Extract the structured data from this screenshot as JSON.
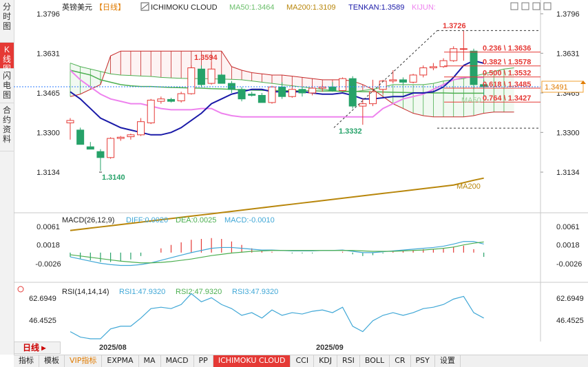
{
  "left_nav": [
    {
      "label": "分时图",
      "active": false
    },
    {
      "label": "K线图",
      "active": true
    },
    {
      "label": "闪电图",
      "active": false
    },
    {
      "label": "合约资料",
      "active": false
    }
  ],
  "main_legend": {
    "symbol": "英镑美元",
    "period": "【日线】",
    "indicator": "ICHIMOKU CLOUD",
    "ma50": "MA50:1.3464",
    "ma200": "MA200:1.3109",
    "tenkan": "TENKAN:1.3589",
    "kijun": "KIJUN:"
  },
  "macd_legend": {
    "title": "MACD(26,12,9)",
    "diff": "DIFF:0.0020",
    "dea": "DEA:0.0025",
    "macd": "MACD:-0.0010"
  },
  "rsi_legend": {
    "title": "RSI(14,14,14)",
    "rsi1": "RSI1:47.9320",
    "rsi2": "RSI2:47.9320",
    "rsi3": "RSI3:47.9320"
  },
  "price_axis": [
    "1.3796",
    "1.3631",
    "1.3465",
    "1.3300",
    "1.3134"
  ],
  "current_price": "1.3491",
  "macd_axis": [
    "0.0061",
    "0.0018",
    "-0.0026"
  ],
  "rsi_axis": [
    "62.6949",
    "46.4525"
  ],
  "annotations": {
    "high": "1.3726",
    "low_left": "1.3140",
    "low_mid": "1.3332",
    "peak_mid": "1.3594",
    "ma50_label": "MA50",
    "ma200_label": "MA200"
  },
  "fib_levels": [
    {
      "label": "0.236 \\ 1.3636",
      "value": 1.3636
    },
    {
      "label": "0.382 \\ 1.3578",
      "value": 1.3578
    },
    {
      "label": "0.500 \\ 1.3532",
      "value": 1.3532
    },
    {
      "label": "0.618 \\ 1.3485",
      "value": 1.3485
    },
    {
      "label": "0.764 \\ 1.3427",
      "value": 1.3427
    }
  ],
  "period_button": "日线",
  "x_labels": [
    "2025/08",
    "2025/09"
  ],
  "toolbar": [
    {
      "label": "指标",
      "style": "first"
    },
    {
      "label": "模板",
      "style": ""
    },
    {
      "label": "VIP指标",
      "style": "orange"
    },
    {
      "label": "EXPMA",
      "style": ""
    },
    {
      "label": "MA",
      "style": ""
    },
    {
      "label": "MACD",
      "style": ""
    },
    {
      "label": "PP",
      "style": ""
    },
    {
      "label": "ICHIMOKU CLOUD",
      "style": "active"
    },
    {
      "label": "CCI",
      "style": ""
    },
    {
      "label": "KDJ",
      "style": ""
    },
    {
      "label": "RSI",
      "style": ""
    },
    {
      "label": "BOLL",
      "style": ""
    },
    {
      "label": "CR",
      "style": ""
    },
    {
      "label": "PSY",
      "style": ""
    },
    {
      "label": "设置",
      "style": ""
    }
  ],
  "colors": {
    "up": "#e53935",
    "down": "#26a269",
    "ma50": "#4caf50",
    "ma200": "#b8860b",
    "tenkan": "#1a1aa8",
    "kijun": "#ee82ee",
    "span_a": "#4caf50",
    "span_b": "#c62828"
  },
  "chart_data": {
    "type": "candlestick",
    "title": "英镑美元 日线",
    "candles": [
      {
        "o": 1.334,
        "h": 1.336,
        "l": 1.327,
        "c": 1.335
      },
      {
        "o": 1.331,
        "h": 1.332,
        "l": 1.325,
        "c": 1.325
      },
      {
        "o": 1.324,
        "h": 1.326,
        "l": 1.323,
        "c": 1.323
      },
      {
        "o": 1.322,
        "h": 1.323,
        "l": 1.314,
        "c": 1.3195
      },
      {
        "o": 1.3195,
        "h": 1.328,
        "l": 1.319,
        "c": 1.3275
      },
      {
        "o": 1.3275,
        "h": 1.3285,
        "l": 1.3265,
        "c": 1.328
      },
      {
        "o": 1.3282,
        "h": 1.3295,
        "l": 1.327,
        "c": 1.329
      },
      {
        "o": 1.329,
        "h": 1.336,
        "l": 1.3285,
        "c": 1.3345
      },
      {
        "o": 1.334,
        "h": 1.344,
        "l": 1.3335,
        "c": 1.3435
      },
      {
        "o": 1.343,
        "h": 1.345,
        "l": 1.342,
        "c": 1.344
      },
      {
        "o": 1.3438,
        "h": 1.3445,
        "l": 1.3425,
        "c": 1.343
      },
      {
        "o": 1.3432,
        "h": 1.347,
        "l": 1.3425,
        "c": 1.3462
      },
      {
        "o": 1.3462,
        "h": 1.358,
        "l": 1.3458,
        "c": 1.357
      },
      {
        "o": 1.3565,
        "h": 1.358,
        "l": 1.349,
        "c": 1.35
      },
      {
        "o": 1.3505,
        "h": 1.3594,
        "l": 1.35,
        "c": 1.3565
      },
      {
        "o": 1.354,
        "h": 1.3545,
        "l": 1.3505,
        "c": 1.3505
      },
      {
        "o": 1.3505,
        "h": 1.3515,
        "l": 1.3465,
        "c": 1.348
      },
      {
        "o": 1.348,
        "h": 1.349,
        "l": 1.343,
        "c": 1.344
      },
      {
        "o": 1.346,
        "h": 1.347,
        "l": 1.345,
        "c": 1.3455
      },
      {
        "o": 1.3455,
        "h": 1.3465,
        "l": 1.3425,
        "c": 1.3425
      },
      {
        "o": 1.3425,
        "h": 1.3495,
        "l": 1.342,
        "c": 1.349
      },
      {
        "o": 1.349,
        "h": 1.351,
        "l": 1.344,
        "c": 1.345
      },
      {
        "o": 1.345,
        "h": 1.35,
        "l": 1.3445,
        "c": 1.348
      },
      {
        "o": 1.348,
        "h": 1.349,
        "l": 1.345,
        "c": 1.3465
      },
      {
        "o": 1.3465,
        "h": 1.3495,
        "l": 1.3455,
        "c": 1.3485
      },
      {
        "o": 1.3485,
        "h": 1.35,
        "l": 1.347,
        "c": 1.349
      },
      {
        "o": 1.349,
        "h": 1.351,
        "l": 1.347,
        "c": 1.3475
      },
      {
        "o": 1.3475,
        "h": 1.353,
        "l": 1.347,
        "c": 1.3525
      },
      {
        "o": 1.3525,
        "h": 1.3535,
        "l": 1.34,
        "c": 1.341
      },
      {
        "o": 1.341,
        "h": 1.344,
        "l": 1.3332,
        "c": 1.342
      },
      {
        "o": 1.342,
        "h": 1.352,
        "l": 1.341,
        "c": 1.347
      },
      {
        "o": 1.348,
        "h": 1.352,
        "l": 1.346,
        "c": 1.3515
      },
      {
        "o": 1.3515,
        "h": 1.356,
        "l": 1.3505,
        "c": 1.352
      },
      {
        "o": 1.352,
        "h": 1.353,
        "l": 1.35,
        "c": 1.351
      },
      {
        "o": 1.351,
        "h": 1.3545,
        "l": 1.3505,
        "c": 1.354
      },
      {
        "o": 1.354,
        "h": 1.358,
        "l": 1.353,
        "c": 1.357
      },
      {
        "o": 1.357,
        "h": 1.359,
        "l": 1.356,
        "c": 1.3575
      },
      {
        "o": 1.3575,
        "h": 1.361,
        "l": 1.357,
        "c": 1.36
      },
      {
        "o": 1.36,
        "h": 1.366,
        "l": 1.3595,
        "c": 1.365
      },
      {
        "o": 1.365,
        "h": 1.3726,
        "l": 1.36,
        "c": 1.365
      },
      {
        "o": 1.364,
        "h": 1.365,
        "l": 1.348,
        "c": 1.35
      },
      {
        "o": 1.35,
        "h": 1.352,
        "l": 1.345,
        "c": 1.3491
      }
    ],
    "ma50": [
      1.356,
      1.355,
      1.354,
      1.352,
      1.351,
      1.35,
      1.3495,
      1.3492,
      1.3492,
      1.349,
      1.3488,
      1.3487,
      1.3486,
      1.3485,
      1.3483,
      1.3482,
      1.348,
      1.3478,
      1.3477,
      1.3476,
      1.3475,
      1.3475,
      1.3474,
      1.3474,
      1.3474,
      1.3473,
      1.3473,
      1.3472,
      1.3472,
      1.347,
      1.347,
      1.3469,
      1.3468,
      1.3467,
      1.3466,
      1.3466,
      1.3465,
      1.3465,
      1.3464,
      1.3464,
      1.3464,
      1.3464
    ],
    "ma200": [
      1.289,
      1.2895,
      1.29,
      1.2905,
      1.291,
      1.2915,
      1.292,
      1.2925,
      1.293,
      1.2935,
      1.294,
      1.2945,
      1.295,
      1.2955,
      1.296,
      1.2965,
      1.297,
      1.2975,
      1.298,
      1.2985,
      1.299,
      1.2995,
      1.3,
      1.3005,
      1.301,
      1.3015,
      1.302,
      1.3025,
      1.303,
      1.3035,
      1.304,
      1.3045,
      1.305,
      1.3055,
      1.306,
      1.3065,
      1.307,
      1.3075,
      1.308,
      1.309,
      1.31,
      1.3109
    ],
    "tenkan": [
      1.347,
      1.344,
      1.34,
      1.336,
      1.334,
      1.332,
      1.331,
      1.33,
      1.329,
      1.329,
      1.33,
      1.332,
      1.335,
      1.338,
      1.342,
      1.344,
      1.346,
      1.347,
      1.348,
      1.348,
      1.347,
      1.347,
      1.347,
      1.347,
      1.3465,
      1.346,
      1.346,
      1.3465,
      1.3455,
      1.344,
      1.344,
      1.3445,
      1.345,
      1.345,
      1.3465,
      1.3465,
      1.347,
      1.349,
      1.353,
      1.358,
      1.36,
      1.3589
    ],
    "kijun": [
      1.356,
      1.352,
      1.349,
      1.346,
      1.344,
      1.343,
      1.342,
      1.342,
      1.341,
      1.34,
      1.3395,
      1.3395,
      1.3395,
      1.34,
      1.34,
      1.338,
      1.337,
      1.3365,
      1.3365,
      1.3365,
      1.3365,
      1.3365,
      1.3365,
      1.3365,
      1.3365,
      1.3365,
      1.3365,
      1.3365,
      1.3365,
      1.3365,
      1.3365,
      1.34,
      1.342,
      1.344,
      1.345,
      1.346,
      1.348,
      1.35,
      1.352,
      1.353,
      1.353,
      1.353
    ],
    "span_a": [
      1.359,
      1.3575,
      1.3565,
      1.3555,
      1.3545,
      1.354,
      1.3538,
      1.3536,
      1.3534,
      1.353,
      1.3528,
      1.3526,
      1.3525,
      1.3525,
      1.3524,
      1.3523,
      1.3522,
      1.352,
      1.3515,
      1.351,
      1.3505,
      1.35,
      1.3495,
      1.349,
      1.3485,
      1.348,
      1.3475,
      1.347,
      1.347,
      1.3475,
      1.348,
      1.349,
      1.35,
      1.35,
      1.35,
      1.35,
      1.3505,
      1.3515,
      1.352,
      1.3525,
      1.3535,
      1.3545,
      1.3555,
      1.3565,
      1.357
    ],
    "span_b": [
      1.345,
      1.346,
      1.348,
      1.35,
      1.362,
      1.364,
      1.364,
      1.364,
      1.364,
      1.364,
      1.364,
      1.364,
      1.364,
      1.364,
      1.364,
      1.364,
      1.3575,
      1.356,
      1.355,
      1.3545,
      1.354,
      1.354,
      1.3535,
      1.353,
      1.3525,
      1.352,
      1.352,
      1.352,
      1.3515,
      1.35,
      1.348,
      1.345,
      1.342,
      1.34,
      1.338,
      1.337,
      1.3365,
      1.3365,
      1.3365,
      1.3365,
      1.337,
      1.338,
      1.3385,
      1.3385,
      1.3385
    ],
    "macd_diff": [
      -0.001,
      -0.0015,
      -0.002,
      -0.0025,
      -0.0028,
      -0.003,
      -0.003,
      -0.0028,
      -0.0024,
      -0.0018,
      -0.0012,
      -0.0006,
      0.0,
      0.0005,
      0.001,
      0.0012,
      0.0012,
      0.001,
      0.0008,
      0.0006,
      0.0006,
      0.0005,
      0.0004,
      0.0004,
      0.0004,
      0.0005,
      0.0005,
      0.0006,
      0.0003,
      0.0,
      0.0,
      0.0002,
      0.0004,
      0.0006,
      0.0008,
      0.001,
      0.0012,
      0.0015,
      0.002,
      0.0026,
      0.0026,
      0.002
    ],
    "macd_dea": [
      -0.0005,
      -0.0008,
      -0.0011,
      -0.0014,
      -0.0017,
      -0.002,
      -0.0022,
      -0.0024,
      -0.0024,
      -0.0023,
      -0.0021,
      -0.0018,
      -0.0015,
      -0.0011,
      -0.0007,
      -0.0004,
      -0.0001,
      0.0001,
      0.0003,
      0.0004,
      0.0005,
      0.0005,
      0.0005,
      0.0005,
      0.0005,
      0.0005,
      0.0005,
      0.0005,
      0.0005,
      0.0004,
      0.0003,
      0.0003,
      0.0003,
      0.0004,
      0.0005,
      0.0006,
      0.0008,
      0.001,
      0.0013,
      0.0018,
      0.0022,
      0.0025
    ],
    "macd_hist": [
      -0.001,
      -0.0014,
      -0.0018,
      -0.0022,
      -0.0022,
      -0.002,
      -0.0016,
      -0.0008,
      0.0,
      0.001,
      0.0018,
      0.0024,
      0.003,
      0.0032,
      0.0034,
      0.0032,
      0.0026,
      0.0018,
      0.001,
      0.0004,
      0.0002,
      0.0,
      -0.0002,
      -0.0002,
      -0.0002,
      0.0,
      0.0,
      0.0002,
      -0.0004,
      -0.0008,
      -0.0006,
      -0.0002,
      0.0002,
      0.0004,
      0.0006,
      0.0008,
      0.0008,
      0.001,
      0.0014,
      0.0016,
      0.0008,
      -0.001
    ],
    "rsi": [
      38,
      34,
      30,
      31,
      40,
      42,
      42,
      48,
      55,
      56,
      55,
      58,
      66,
      60,
      63,
      58,
      55,
      50,
      52,
      48,
      54,
      50,
      52,
      51,
      53,
      54,
      52,
      56,
      42,
      38,
      46,
      50,
      52,
      50,
      52,
      55,
      56,
      58,
      62,
      64,
      52,
      48
    ]
  }
}
